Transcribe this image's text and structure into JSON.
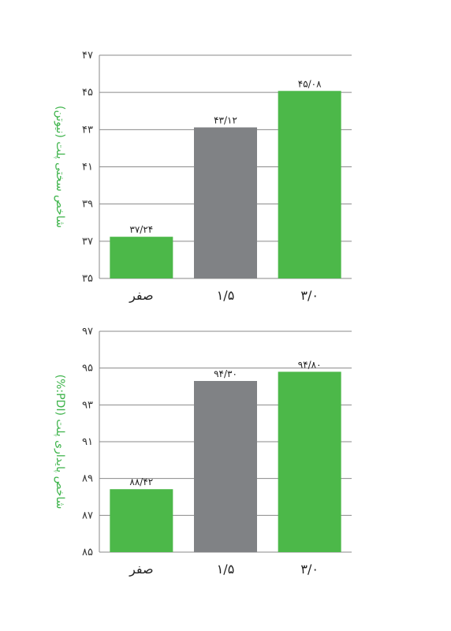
{
  "chart_data": [
    {
      "type": "bar",
      "ylabel": "شاخص سختی پلت (نیوتن)",
      "categories": [
        "صفر",
        "۱/۵",
        "۳/۰"
      ],
      "values": [
        37.24,
        43.12,
        45.08
      ],
      "value_labels": [
        "۳۷/۲۴",
        "۴۳/۱۲",
        "۴۵/۰۸"
      ],
      "ylim": [
        35,
        47
      ],
      "yticks": [
        35,
        37,
        39,
        41,
        43,
        45,
        47
      ],
      "ytick_labels": [
        "۳۵",
        "۳۷",
        "۳۹",
        "۴۱",
        "۴۳",
        "۴۵",
        "۴۷"
      ],
      "bar_colors": [
        "#4cb849",
        "#808285",
        "#4cb849"
      ],
      "grid": true
    },
    {
      "type": "bar",
      "ylabel": "شاخص پایداری پلت (PDI:%)",
      "categories": [
        "صفر",
        "۱/۵",
        "۳/۰"
      ],
      "values": [
        88.42,
        94.3,
        94.8
      ],
      "value_labels": [
        "۸۸/۴۲",
        "۹۴/۳۰",
        "۹۴/۸۰"
      ],
      "ylim": [
        85,
        97
      ],
      "yticks": [
        85,
        87,
        89,
        91,
        93,
        95,
        97
      ],
      "ytick_labels": [
        "۸۵",
        "۸۷",
        "۸۹",
        "۹۱",
        "۹۳",
        "۹۵",
        "۹۷"
      ],
      "bar_colors": [
        "#4cb849",
        "#808285",
        "#4cb849"
      ],
      "grid": true
    }
  ]
}
